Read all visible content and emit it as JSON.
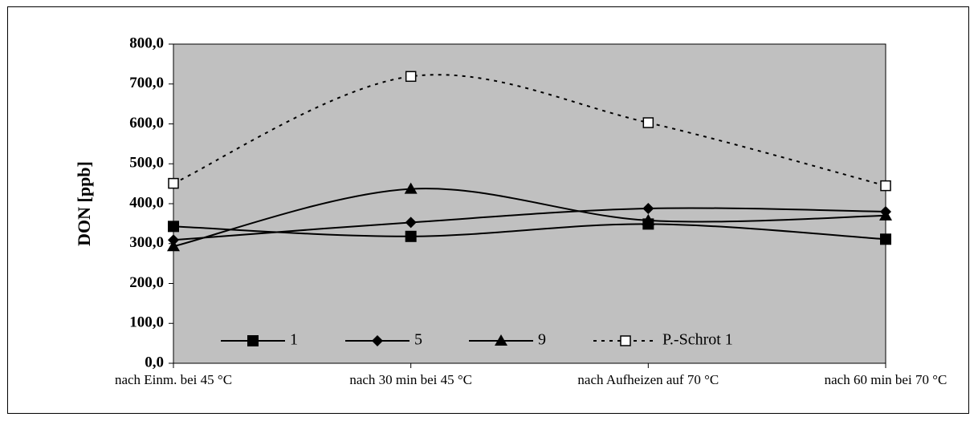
{
  "chart_data": {
    "type": "line",
    "title": "",
    "xlabel": "",
    "ylabel": "DON [ppb]",
    "categories": [
      "nach Einm. bei 45 °C",
      "nach 30 min bei 45 °C",
      "nach Aufheizen auf 70 °C",
      "nach 60 min bei 70 °C"
    ],
    "ylim": [
      0,
      800
    ],
    "yticks": [
      "0,0",
      "100,0",
      "200,0",
      "300,0",
      "400,0",
      "500,0",
      "600,0",
      "700,0",
      "800,0"
    ],
    "plot_background": "#c0c0c0",
    "legend_position": "bottom-inside",
    "smoothed": true,
    "series": [
      {
        "name": "1",
        "marker": "square-filled",
        "line": "solid",
        "color": "#000000",
        "values": [
          343,
          318,
          349,
          311
        ]
      },
      {
        "name": "5",
        "marker": "diamond-filled",
        "line": "solid",
        "color": "#000000",
        "values": [
          309,
          353,
          388,
          380
        ]
      },
      {
        "name": "9",
        "marker": "triangle-filled",
        "line": "solid",
        "color": "#000000",
        "values": [
          293,
          437,
          358,
          370
        ]
      },
      {
        "name": "P.-Schrot 1",
        "marker": "square-open",
        "line": "dotted",
        "color": "#000000",
        "values": [
          451,
          719,
          603,
          445
        ]
      }
    ]
  }
}
